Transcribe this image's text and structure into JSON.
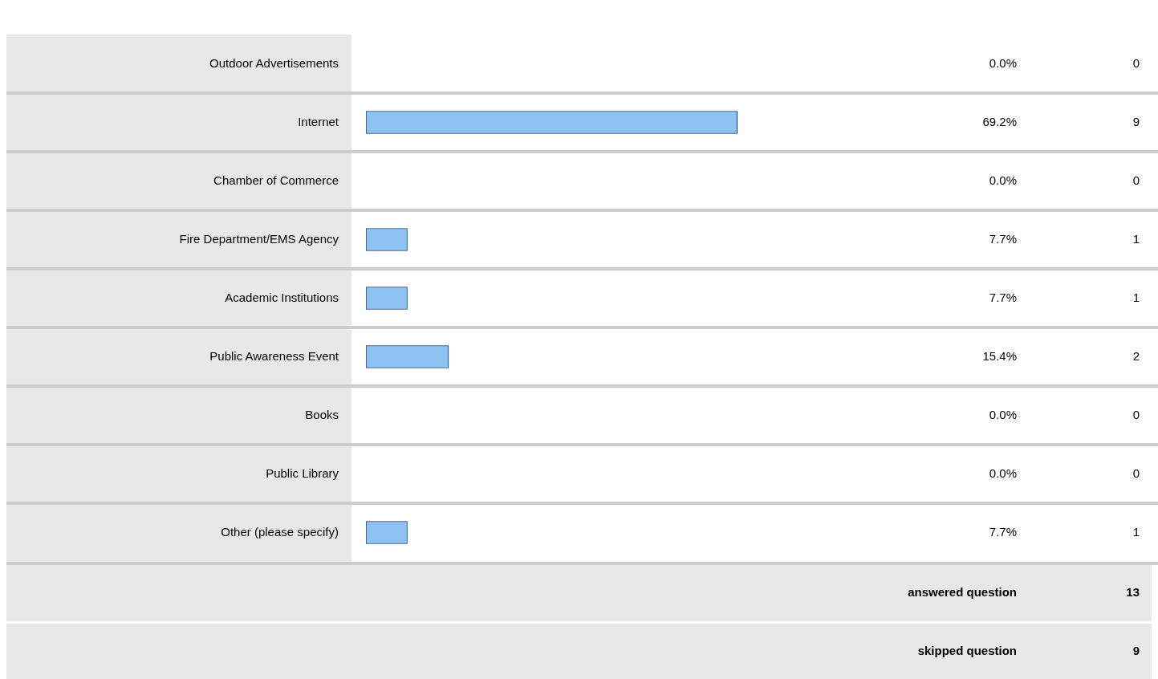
{
  "chart_data": {
    "type": "bar",
    "orientation": "horizontal",
    "categories": [
      "Outdoor Advertisements",
      "Internet",
      "Chamber of Commerce",
      "Fire Department/EMS Agency",
      "Academic Institutions",
      "Public Awareness Event",
      "Books",
      "Public Library",
      "Other (please specify)"
    ],
    "color": "#8ec2f2",
    "values": [
      0,
      69.2,
      0,
      7.7,
      7.7,
      15.4,
      0,
      0,
      7.7
    ],
    "value_labels": [
      "0.0%",
      "69.2%",
      "0.0%",
      "7.7%",
      "7.7%",
      "15.4%",
      "0.0%",
      "0.0%",
      "7.7%"
    ],
    "tick_labels": "y",
    "grid": false,
    "legend": false,
    "annotations": [
      "0",
      "9",
      "0",
      "1",
      "1",
      "2",
      "0",
      "0",
      "1",
      "answered question",
      "13",
      "skipped question",
      "9"
    ]
  }
}
